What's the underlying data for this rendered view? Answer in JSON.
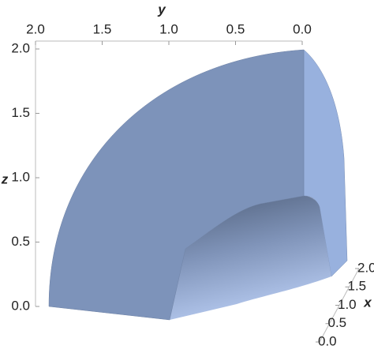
{
  "chart_data": {
    "type": "region3d",
    "x_label": "x",
    "y_label": "y",
    "z_label": "z",
    "xlim": [
      0,
      2
    ],
    "ylim": [
      0,
      2
    ],
    "zlim": [
      0,
      2
    ],
    "xticks": [
      {
        "value": 0,
        "label": "0.0"
      },
      {
        "value": 0.5,
        "label": "0.5"
      },
      {
        "value": 1,
        "label": "1.0"
      },
      {
        "value": 1.5,
        "label": "1.5"
      },
      {
        "value": 2,
        "label": "2.0"
      }
    ],
    "yticks": [
      {
        "value": 0,
        "label": "0.0"
      },
      {
        "value": 0.5,
        "label": "0.5"
      },
      {
        "value": 1,
        "label": "1.0"
      },
      {
        "value": 1.5,
        "label": "1.5"
      },
      {
        "value": 2,
        "label": "2.0"
      }
    ],
    "zticks": [
      {
        "value": 0,
        "label": "0.0"
      },
      {
        "value": 0.5,
        "label": "0.5"
      },
      {
        "value": 1,
        "label": "1.0"
      },
      {
        "value": 1.5,
        "label": "1.5"
      },
      {
        "value": 2,
        "label": "2.0"
      }
    ]
  }
}
